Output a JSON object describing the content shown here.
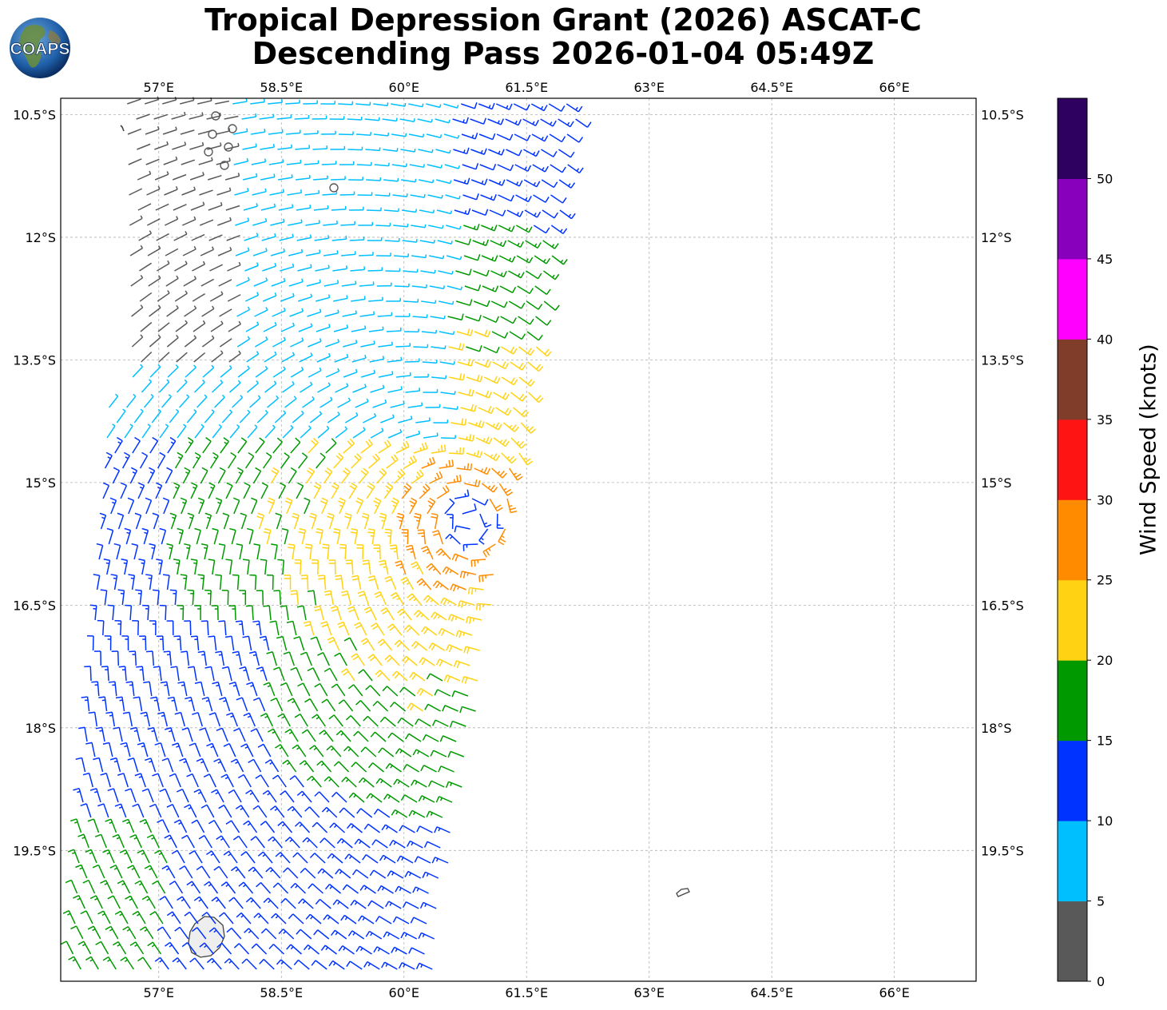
{
  "title": {
    "line1": "Tropical Depression Grant (2026) ASCAT-C",
    "line2": "Descending Pass 2026-01-04 05:49Z"
  },
  "logo": {
    "text": "COAPS",
    "icon": "globe-icon"
  },
  "map": {
    "lon_range": [
      55.8,
      67.0
    ],
    "lat_range": [
      -21.1,
      -10.3
    ],
    "lon_ticks": [
      "57°E",
      "58.5°E",
      "60°E",
      "61.5°E",
      "63°E",
      "64.5°E",
      "66°E"
    ],
    "lon_values": [
      57,
      58.5,
      60,
      61.5,
      63,
      64.5,
      66
    ],
    "lat_ticks": [
      "10.5°S",
      "12°S",
      "13.5°S",
      "15°S",
      "16.5°S",
      "18°S",
      "19.5°S"
    ],
    "lat_values": [
      -10.5,
      -12,
      -13.5,
      -15,
      -16.5,
      -18,
      -19.5
    ],
    "grid": true,
    "gridline_style": "dashed",
    "land_features": [
      "Mauritius",
      "Rodrigues"
    ],
    "storm_center": {
      "lon": 60.8,
      "lat": -15.5
    }
  },
  "colorbar": {
    "label": "Wind Speed (knots)",
    "tick_labels": [
      "0",
      "5",
      "10",
      "15",
      "20",
      "25",
      "30",
      "35",
      "40",
      "45",
      "50"
    ],
    "bins": [
      {
        "min": 0,
        "max": 5,
        "color": "#595959"
      },
      {
        "min": 5,
        "max": 10,
        "color": "#00bfff"
      },
      {
        "min": 10,
        "max": 15,
        "color": "#0033ff"
      },
      {
        "min": 15,
        "max": 20,
        "color": "#009900"
      },
      {
        "min": 20,
        "max": 25,
        "color": "#ffd314"
      },
      {
        "min": 25,
        "max": 30,
        "color": "#ff8c00"
      },
      {
        "min": 30,
        "max": 35,
        "color": "#ff1414"
      },
      {
        "min": 35,
        "max": 40,
        "color": "#7f3d2a"
      },
      {
        "min": 40,
        "max": 45,
        "color": "#ff00ff"
      },
      {
        "min": 45,
        "max": 50,
        "color": "#8800bb"
      },
      {
        "min": 50,
        "max": 55,
        "color": "#2e0060"
      }
    ]
  }
}
